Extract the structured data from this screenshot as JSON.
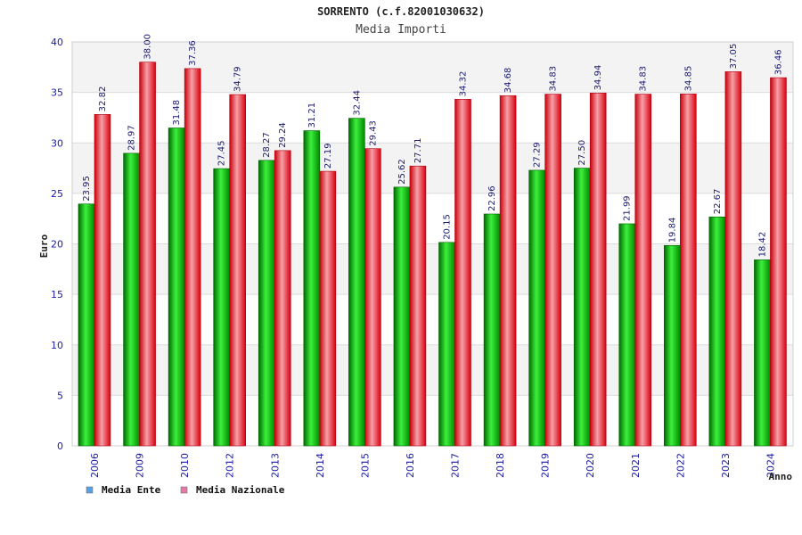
{
  "chart_data": {
    "type": "bar",
    "title": "SORRENTO (c.f.82001030632)",
    "subtitle": "Media Importi",
    "ylabel": "Euro",
    "xlabel": "Anno",
    "ylim": [
      0,
      40
    ],
    "yticks": [
      0,
      5,
      10,
      15,
      20,
      25,
      30,
      35,
      40
    ],
    "grid": true,
    "legend_position": "bottom-left",
    "categories": [
      "2006",
      "2009",
      "2010",
      "2012",
      "2013",
      "2014",
      "2015",
      "2016",
      "2017",
      "2018",
      "2019",
      "2020",
      "2021",
      "2022",
      "2023",
      "2024"
    ],
    "series": [
      {
        "name": "Media Ente",
        "color": "#00b400",
        "legend_color": "#5aa0e6",
        "values": [
          23.95,
          28.97,
          31.48,
          27.45,
          28.27,
          31.21,
          32.44,
          25.62,
          20.15,
          22.96,
          27.29,
          27.5,
          21.99,
          19.84,
          22.67,
          18.42
        ],
        "labels": [
          "23.95",
          "28.97",
          "31.48",
          "27.45",
          "28.27",
          "31.21",
          "32.44",
          "25.62",
          "20.15",
          "22.96",
          "27.29",
          "27.50",
          "21.99",
          "19.84",
          "22.67",
          "18.42"
        ]
      },
      {
        "name": "Media Nazionale",
        "color": "#e8141e",
        "legend_color": "#e57aa8",
        "values": [
          32.82,
          38.0,
          37.36,
          34.79,
          29.24,
          27.19,
          29.43,
          27.71,
          34.32,
          34.68,
          34.83,
          34.94,
          34.83,
          34.85,
          37.05,
          36.46
        ],
        "labels": [
          "32.82",
          "38.00",
          "37.36",
          "34.79",
          "29.24",
          "27.19",
          "29.43",
          "27.71",
          "34.32",
          "34.68",
          "34.83",
          "34.94",
          "34.83",
          "34.85",
          "37.05",
          "36.46"
        ]
      }
    ]
  }
}
